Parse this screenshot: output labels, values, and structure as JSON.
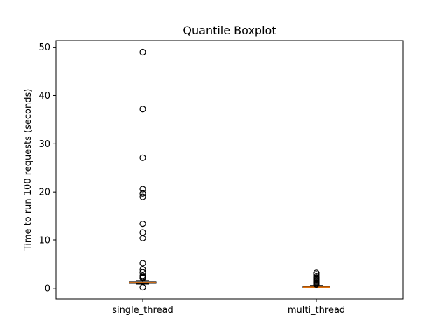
{
  "chart_data": {
    "type": "boxplot",
    "title": "Quantile Boxplot",
    "xlabel": "",
    "ylabel": "Time to run 100 requests (seconds)",
    "ylim": [
      -2.2,
      51.4
    ],
    "yticks": [
      0,
      10,
      20,
      30,
      40,
      50
    ],
    "grid": false,
    "categories": [
      "single_thread",
      "multi_thread"
    ],
    "series": [
      {
        "category": "single_thread",
        "q1": 1.0,
        "median": 1.15,
        "q3": 1.3,
        "whisker_low": 0.85,
        "whisker_high": 1.6,
        "outliers": [
          49.0,
          37.2,
          27.1,
          20.6,
          19.7,
          19.0,
          13.4,
          11.6,
          10.4,
          5.2,
          3.9,
          3.3,
          2.6,
          2.3,
          2.1,
          0.2
        ]
      },
      {
        "category": "multi_thread",
        "q1": 0.15,
        "median": 0.25,
        "q3": 0.35,
        "whisker_low": 0.05,
        "whisker_high": 0.6,
        "outliers": [
          3.2,
          2.9,
          2.5,
          2.2,
          2.0,
          1.8,
          1.6,
          1.4,
          1.2,
          1.0,
          0.8
        ]
      }
    ],
    "colors": {
      "box": "#000000",
      "median": "#ff7f0e",
      "outlier_edge": "#000000"
    }
  }
}
